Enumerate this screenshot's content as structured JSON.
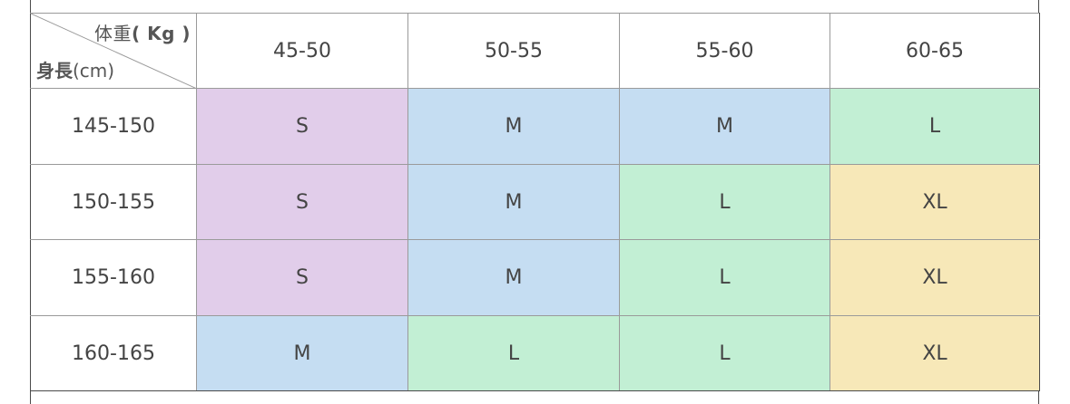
{
  "corner": {
    "weight_label": "体重",
    "weight_unit": "( Kg )",
    "height_label": "身長",
    "height_unit": "(cm)"
  },
  "weight_columns": [
    "45-50",
    "50-55",
    "55-60",
    "60-65"
  ],
  "rows": [
    {
      "height": "145-150",
      "sizes": [
        "S",
        "M",
        "M",
        "L"
      ]
    },
    {
      "height": "150-155",
      "sizes": [
        "S",
        "M",
        "L",
        "XL"
      ]
    },
    {
      "height": "155-160",
      "sizes": [
        "S",
        "M",
        "L",
        "XL"
      ]
    },
    {
      "height": "160-165",
      "sizes": [
        "M",
        "L",
        "L",
        "XL"
      ]
    }
  ],
  "size_colors": {
    "S": "#e1cdea",
    "M": "#c5ddf2",
    "L": "#c2efd4",
    "XL": "#f7e8b8"
  }
}
